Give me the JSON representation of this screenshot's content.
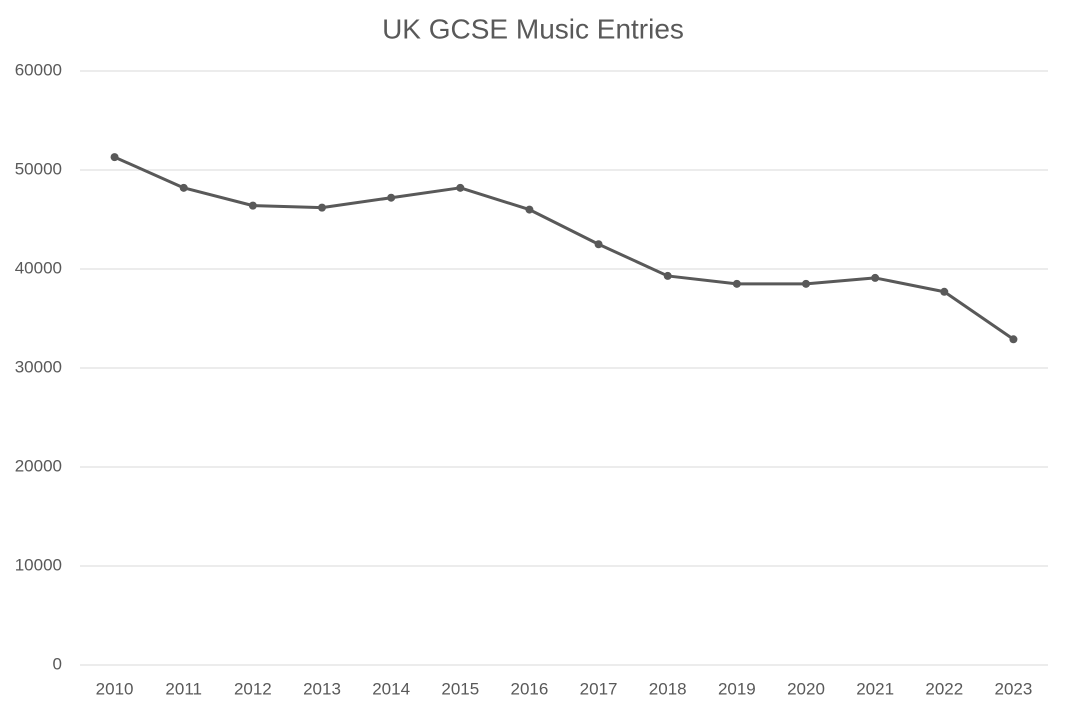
{
  "chart_data": {
    "type": "line",
    "title": "UK GCSE Music Entries",
    "categories": [
      "2010",
      "2011",
      "2012",
      "2013",
      "2014",
      "2015",
      "2016",
      "2017",
      "2018",
      "2019",
      "2020",
      "2021",
      "2022",
      "2023"
    ],
    "series": [
      {
        "name": "Entries",
        "color": "#595959",
        "values": [
          51300,
          48200,
          46400,
          46200,
          47200,
          48200,
          46000,
          42500,
          39300,
          38500,
          38500,
          39100,
          37700,
          32900
        ]
      }
    ],
    "ylim": [
      0,
      60000
    ],
    "yticks": [
      0,
      10000,
      20000,
      30000,
      40000,
      50000,
      60000
    ],
    "grid": true
  }
}
